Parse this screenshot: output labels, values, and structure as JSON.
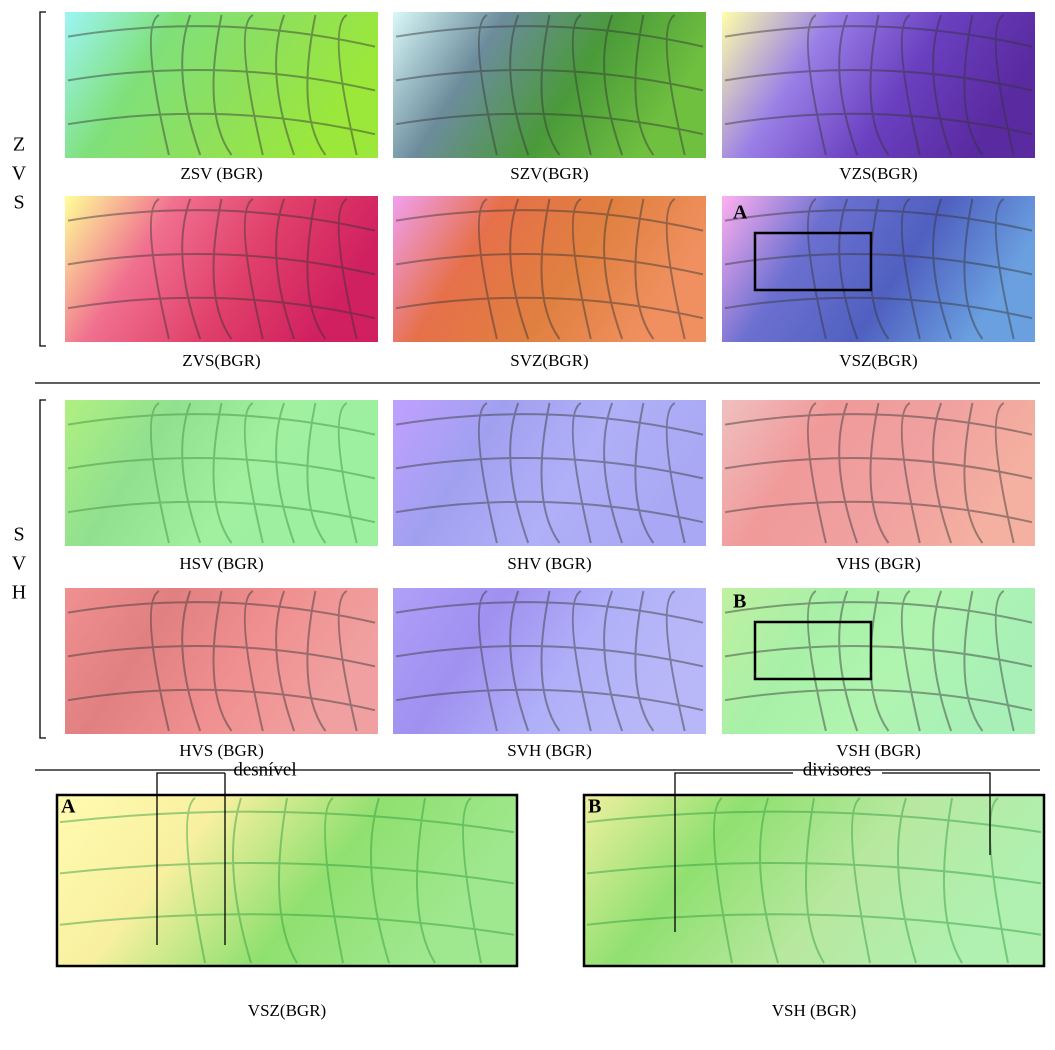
{
  "groups": [
    {
      "labels": [
        "Z",
        "V",
        "S"
      ],
      "panels": [
        {
          "caption": "ZSV (BGR)"
        },
        {
          "caption": "SZV(BGR)"
        },
        {
          "caption": "VZS(BGR)"
        },
        {
          "caption": "ZVS(BGR)"
        },
        {
          "caption": "SVZ(BGR)"
        },
        {
          "caption": "VSZ(BGR)",
          "marker": "A"
        }
      ]
    },
    {
      "labels": [
        "S",
        "V",
        "H"
      ],
      "panels": [
        {
          "caption": "HSV (BGR)"
        },
        {
          "caption": "SHV (BGR)"
        },
        {
          "caption": "VHS (BGR)"
        },
        {
          "caption": "HVS (BGR)"
        },
        {
          "caption": "SVH (BGR)"
        },
        {
          "caption": "VSH (BGR)",
          "marker": "B"
        }
      ]
    }
  ],
  "details": [
    {
      "letter": "A",
      "caption": "VSZ(BGR)",
      "annotation": "desnível"
    },
    {
      "letter": "B",
      "caption": "VSH (BGR)",
      "annotation": "divisores"
    }
  ]
}
